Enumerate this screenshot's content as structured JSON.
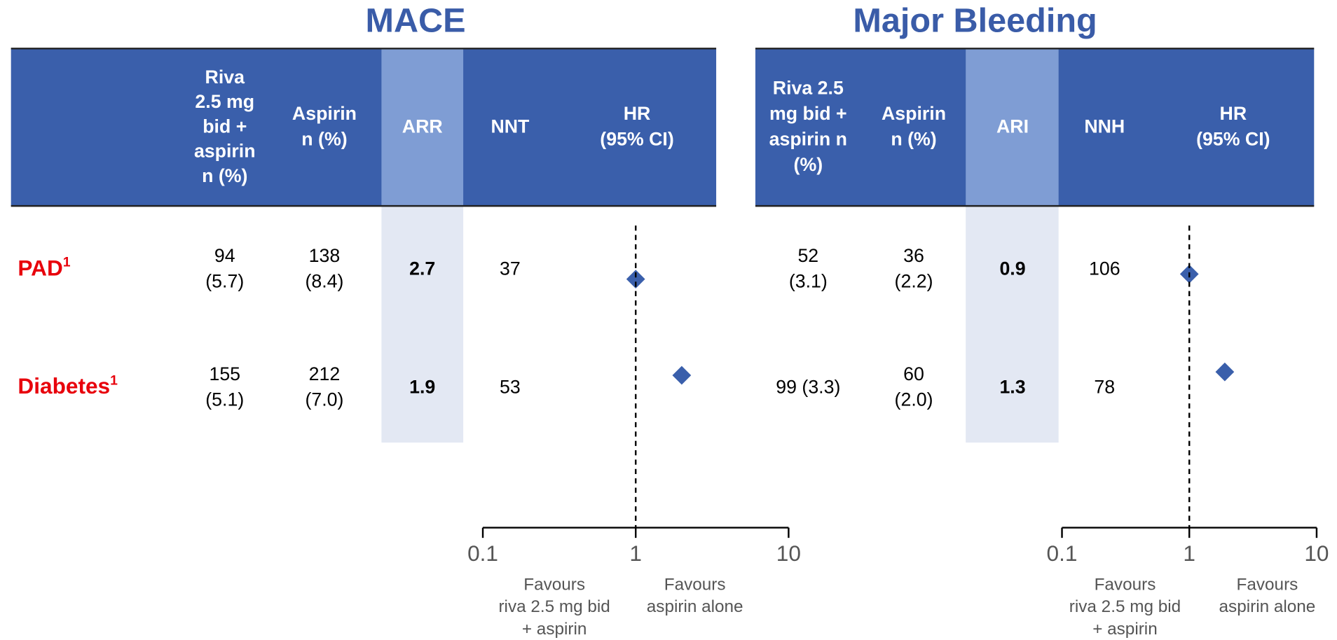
{
  "panels": [
    {
      "title": "MACE",
      "headers": [
        [
          "Riva",
          "2.5 mg",
          "bid +",
          "aspirin",
          "n (%)"
        ],
        [
          "Aspirin",
          "n (%)"
        ],
        [
          "ARR"
        ],
        [
          "NNT"
        ],
        [
          "HR",
          "(95% CI)"
        ]
      ],
      "rows": [
        {
          "label": "PAD",
          "note": "1",
          "cells": [
            [
              "94",
              "(5.7)"
            ],
            [
              "138",
              "(8.4)"
            ],
            [
              "2.7"
            ],
            [
              "37"
            ]
          ],
          "hr": 1.0
        },
        {
          "label": "Diabetes",
          "note": "1",
          "cells": [
            [
              "155",
              "(5.1)"
            ],
            [
              "212",
              "(7.0)"
            ],
            [
              "1.9"
            ],
            [
              "53"
            ]
          ],
          "hr": 2.0
        }
      ],
      "plot": {
        "scale": "log",
        "xlim": [
          0.1,
          10
        ],
        "xticks": [
          0.1,
          1,
          10
        ],
        "reference": 1,
        "favours_left": [
          "Favours",
          "riva 2.5 mg bid",
          "+ aspirin"
        ],
        "favours_right": [
          "Favours",
          "aspirin alone"
        ]
      }
    },
    {
      "title": "Major Bleeding",
      "headers": [
        [
          "Riva 2.5",
          "mg bid +",
          "aspirin n",
          "(%)"
        ],
        [
          "Aspirin",
          "n (%)"
        ],
        [
          "ARI"
        ],
        [
          "NNH"
        ],
        [
          "HR",
          "(95% CI)"
        ]
      ],
      "rows": [
        {
          "label": "PAD",
          "note": "1",
          "cells": [
            [
              "52",
              "(3.1)"
            ],
            [
              "36",
              "(2.2)"
            ],
            [
              "0.9"
            ],
            [
              "106"
            ]
          ],
          "hr": 1.0
        },
        {
          "label": "Diabetes",
          "note": "1",
          "cells": [
            [
              "99 (3.3)"
            ],
            [
              "60",
              "(2.0)"
            ],
            [
              "1.3"
            ],
            [
              "78"
            ]
          ],
          "hr": 1.9
        }
      ],
      "plot": {
        "scale": "log",
        "xlim": [
          0.1,
          10
        ],
        "xticks": [
          0.1,
          1,
          10
        ],
        "reference": 1,
        "favours_left": [
          "Favours",
          "riva 2.5 mg bid",
          "+ aspirin"
        ],
        "favours_right": [
          "Favours",
          "aspirin alone"
        ]
      }
    }
  ]
}
